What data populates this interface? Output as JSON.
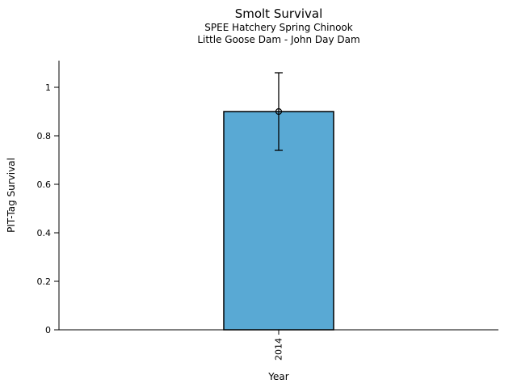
{
  "title": "Smolt Survival",
  "subtitle_line1": "SPEE Hatchery Spring Chinook",
  "subtitle_line2": "Little Goose Dam - John Day Dam",
  "chart_data": {
    "type": "bar",
    "title": "Smolt Survival",
    "subtitle": [
      "SPEE Hatchery Spring Chinook",
      "Little Goose Dam - John Day Dam"
    ],
    "categories": [
      "2014"
    ],
    "values": [
      0.9
    ],
    "error_low": [
      0.74
    ],
    "error_high": [
      1.06
    ],
    "xlabel": "Year",
    "ylabel": "PIT-Tag Survival",
    "ylim": [
      0,
      1.11
    ],
    "yticks": [
      0,
      0.2,
      0.4,
      0.6,
      0.8,
      1
    ],
    "ytick_labels": [
      "0",
      "0.2",
      "0.4",
      "0.6",
      "0.8",
      "1"
    ],
    "bar_color": "#59A9D4",
    "bar_edge_color": "#000000",
    "axis_color": "#000000",
    "text_color": "#000000",
    "bar_width_frac": 0.25,
    "marker": "open-circle",
    "grid": false,
    "legend": null
  }
}
